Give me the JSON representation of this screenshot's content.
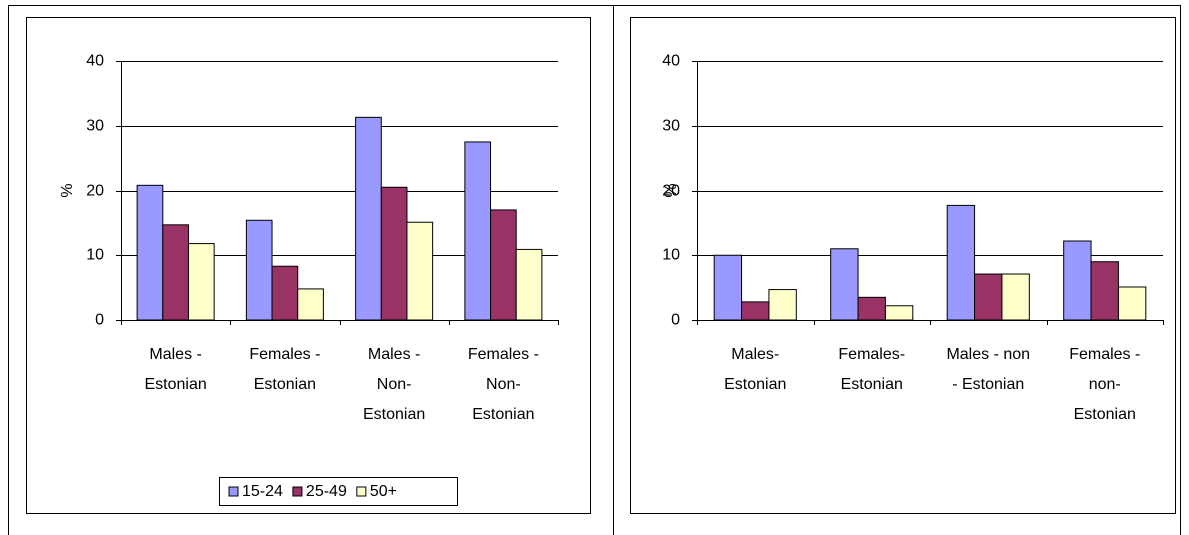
{
  "chart_data": [
    {
      "type": "bar",
      "y_label": "%",
      "categories": [
        "Males -\nEstonian",
        "Females -\nEstonian",
        "Males -\nNon-\nEstonian",
        "Females -\nNon-\nEstonian"
      ],
      "series": [
        {
          "name": "15-24",
          "color": "#9999ff",
          "values": [
            20.8,
            15.4,
            31.3,
            27.5
          ]
        },
        {
          "name": "25-49",
          "color": "#993366",
          "values": [
            14.7,
            8.3,
            20.5,
            17.0
          ]
        },
        {
          "name": "50+",
          "color": "#ffffcc",
          "values": [
            11.8,
            4.8,
            15.1,
            10.9
          ]
        }
      ],
      "ylim": [
        0,
        40
      ],
      "yticks": [
        0,
        10,
        20,
        30,
        40
      ],
      "grid": true,
      "legend": "bottom"
    },
    {
      "type": "bar",
      "y_label": "%",
      "categories": [
        "Males-\nEstonian",
        "Females-\nEstonian",
        "Males - non\n- Estonian",
        "Females -\nnon-\nEstonian"
      ],
      "series": [
        {
          "color": "#9999ff",
          "values": [
            10.0,
            11.0,
            17.7,
            12.2
          ]
        },
        {
          "color": "#993366",
          "values": [
            2.8,
            3.5,
            7.1,
            9.0
          ]
        },
        {
          "color": "#ffffcc",
          "values": [
            4.7,
            2.2,
            7.1,
            5.1
          ]
        }
      ],
      "ylim": [
        0,
        40
      ],
      "yticks": [
        0,
        10,
        20,
        30,
        40
      ],
      "grid": true,
      "legend": "none"
    }
  ]
}
